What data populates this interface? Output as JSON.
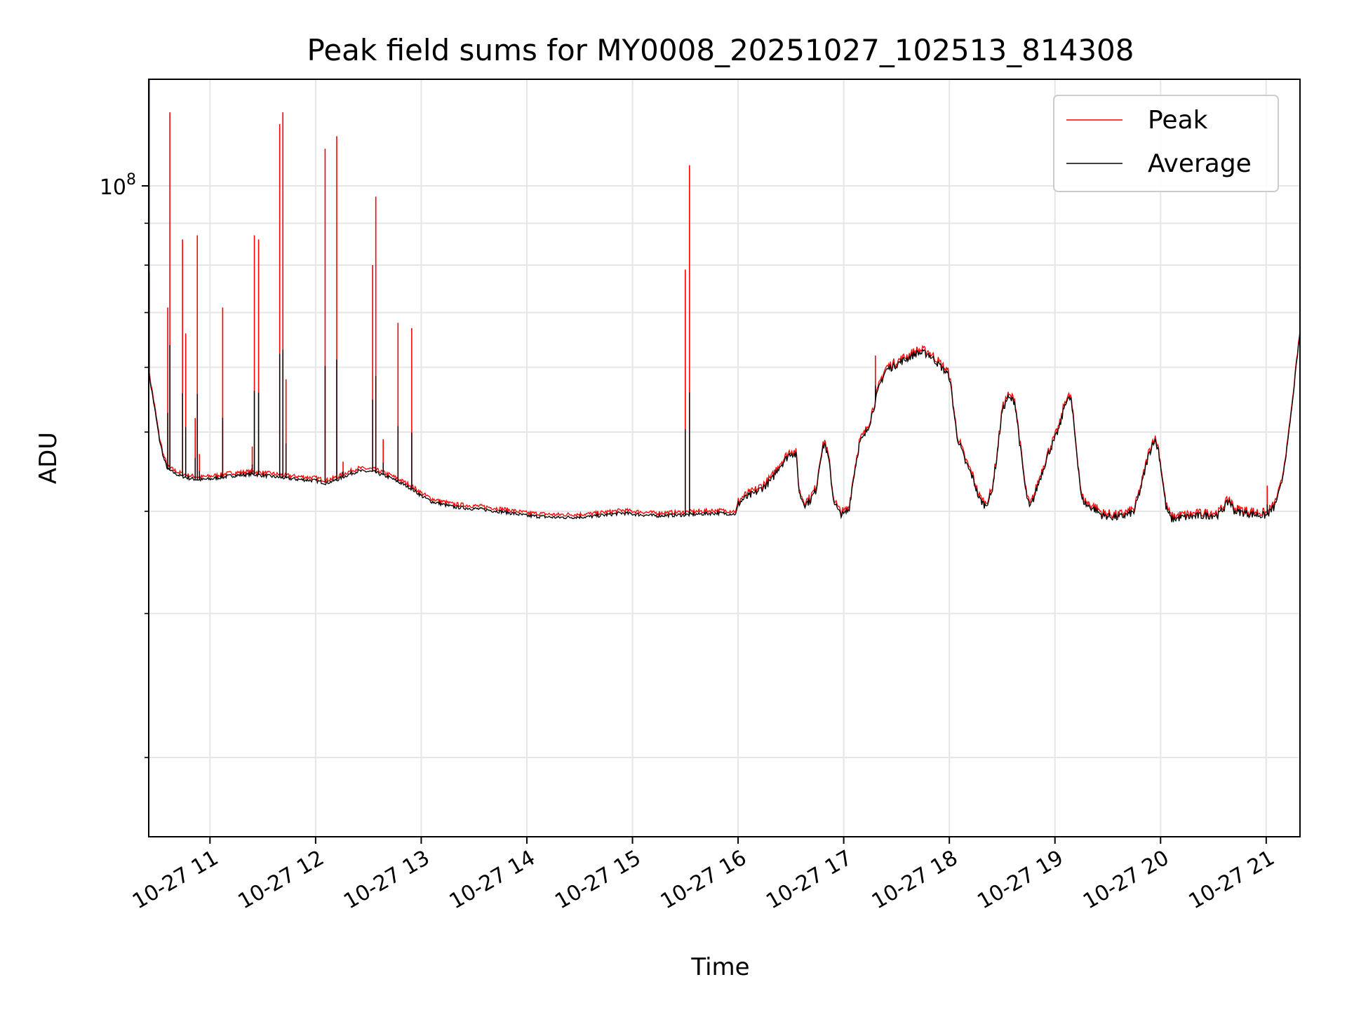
{
  "chart_data": {
    "type": "line",
    "title": "Peak field sums for MY0008_20251027_102513_814308",
    "xlabel": "Time",
    "ylabel": "ADU",
    "yscale": "log",
    "ylim": [
      16000000,
      135000000
    ],
    "xlim": [
      10.42,
      21.32
    ],
    "x_ticks": [
      11,
      12,
      13,
      14,
      15,
      16,
      17,
      18,
      19,
      20,
      21
    ],
    "x_tick_labels": [
      "10-27 11",
      "10-27 12",
      "10-27 13",
      "10-27 14",
      "10-27 15",
      "10-27 16",
      "10-27 17",
      "10-27 18",
      "10-27 19",
      "10-27 20",
      "10-27 21"
    ],
    "y_major_ticks": [
      100000000
    ],
    "y_major_tick_labels": {
      "base": "10",
      "exp": "8"
    },
    "y_minor_ticks": [
      20000000,
      30000000,
      40000000,
      50000000,
      60000000,
      70000000,
      80000000,
      90000000
    ],
    "grid": true,
    "legend_position": "top-right",
    "series": [
      {
        "name": "Peak",
        "color": "#ff0000",
        "baseline": "same as Average",
        "spikes": [
          [
            10.425,
            135000000
          ],
          [
            10.6,
            71000000
          ],
          [
            10.62,
            123000000
          ],
          [
            10.74,
            86000000
          ],
          [
            10.77,
            66000000
          ],
          [
            10.86,
            52000000
          ],
          [
            10.88,
            87000000
          ],
          [
            10.9,
            47000000
          ],
          [
            11.12,
            71000000
          ],
          [
            11.4,
            48000000
          ],
          [
            11.42,
            87000000
          ],
          [
            11.46,
            86000000
          ],
          [
            11.66,
            119000000
          ],
          [
            11.69,
            123000000
          ],
          [
            11.72,
            58000000
          ],
          [
            12.09,
            111000000
          ],
          [
            12.2,
            115000000
          ],
          [
            12.26,
            46000000
          ],
          [
            12.54,
            80000000
          ],
          [
            12.57,
            97000000
          ],
          [
            12.64,
            49000000
          ],
          [
            12.78,
            68000000
          ],
          [
            12.91,
            67000000
          ],
          [
            15.5,
            79000000
          ],
          [
            15.54,
            106000000
          ],
          [
            17.3,
            62000000
          ],
          [
            18.33,
            41000000
          ],
          [
            21.01,
            43000000
          ]
        ]
      },
      {
        "name": "Average",
        "color": "#000000",
        "points": [
          [
            10.42,
            59000000
          ],
          [
            10.44,
            57000000
          ],
          [
            10.48,
            53000000
          ],
          [
            10.52,
            49000000
          ],
          [
            10.56,
            46500000
          ],
          [
            10.6,
            45000000
          ],
          [
            10.7,
            44300000
          ],
          [
            10.8,
            43900000
          ],
          [
            10.9,
            43700000
          ],
          [
            11.0,
            43800000
          ],
          [
            11.2,
            44200000
          ],
          [
            11.4,
            44400000
          ],
          [
            11.6,
            44100000
          ],
          [
            11.8,
            43800000
          ],
          [
            12.0,
            43600000
          ],
          [
            12.1,
            43300000
          ],
          [
            12.2,
            43700000
          ],
          [
            12.3,
            44300000
          ],
          [
            12.4,
            44800000
          ],
          [
            12.55,
            44700000
          ],
          [
            12.7,
            44000000
          ],
          [
            12.9,
            42700000
          ],
          [
            13.0,
            41800000
          ],
          [
            13.1,
            41100000
          ],
          [
            13.3,
            40500000
          ],
          [
            13.6,
            40200000
          ],
          [
            13.8,
            39900000
          ],
          [
            14.0,
            39500000
          ],
          [
            14.3,
            39300000
          ],
          [
            14.6,
            39400000
          ],
          [
            14.9,
            39800000
          ],
          [
            15.2,
            39500000
          ],
          [
            15.5,
            39600000
          ],
          [
            15.8,
            39800000
          ],
          [
            15.98,
            39700000
          ],
          [
            16.0,
            40800000
          ],
          [
            16.05,
            41400000
          ],
          [
            16.15,
            42000000
          ],
          [
            16.25,
            42900000
          ],
          [
            16.32,
            43700000
          ],
          [
            16.38,
            45200000
          ],
          [
            16.45,
            46300000
          ],
          [
            16.5,
            47200000
          ],
          [
            16.55,
            46800000
          ],
          [
            16.58,
            42000000
          ],
          [
            16.63,
            40800000
          ],
          [
            16.68,
            41200000
          ],
          [
            16.74,
            42500000
          ],
          [
            16.78,
            46500000
          ],
          [
            16.82,
            48500000
          ],
          [
            16.86,
            46000000
          ],
          [
            16.9,
            41500000
          ],
          [
            16.95,
            39900000
          ],
          [
            17.0,
            39600000
          ],
          [
            17.05,
            40200000
          ],
          [
            17.1,
            44500000
          ],
          [
            17.15,
            48500000
          ],
          [
            17.2,
            49500000
          ],
          [
            17.25,
            51500000
          ],
          [
            17.3,
            54500000
          ],
          [
            17.35,
            57500000
          ],
          [
            17.4,
            59500000
          ],
          [
            17.5,
            60500000
          ],
          [
            17.6,
            61500000
          ],
          [
            17.7,
            62500000
          ],
          [
            17.8,
            62300000
          ],
          [
            17.9,
            60500000
          ],
          [
            18.0,
            58500000
          ],
          [
            18.07,
            49500000
          ],
          [
            18.15,
            46000000
          ],
          [
            18.22,
            44000000
          ],
          [
            18.28,
            41500000
          ],
          [
            18.34,
            40600000
          ],
          [
            18.4,
            42000000
          ],
          [
            18.45,
            46500000
          ],
          [
            18.5,
            53000000
          ],
          [
            18.55,
            55000000
          ],
          [
            18.62,
            54500000
          ],
          [
            18.67,
            48000000
          ],
          [
            18.72,
            42500000
          ],
          [
            18.76,
            40300000
          ],
          [
            18.8,
            41500000
          ],
          [
            18.85,
            43500000
          ],
          [
            18.9,
            45500000
          ],
          [
            18.95,
            47500000
          ],
          [
            19.0,
            49000000
          ],
          [
            19.05,
            51000000
          ],
          [
            19.1,
            54500000
          ],
          [
            19.15,
            55000000
          ],
          [
            19.2,
            48000000
          ],
          [
            19.25,
            41500000
          ],
          [
            19.3,
            40700000
          ],
          [
            19.38,
            40200000
          ],
          [
            19.45,
            39500000
          ],
          [
            19.6,
            39300000
          ],
          [
            19.75,
            39900000
          ],
          [
            19.82,
            43000000
          ],
          [
            19.88,
            46500000
          ],
          [
            19.94,
            49000000
          ],
          [
            19.98,
            47500000
          ],
          [
            20.05,
            40500000
          ],
          [
            20.1,
            39100000
          ],
          [
            20.2,
            39300000
          ],
          [
            20.4,
            39500000
          ],
          [
            20.55,
            39600000
          ],
          [
            20.65,
            41200000
          ],
          [
            20.7,
            40000000
          ],
          [
            20.85,
            39700000
          ],
          [
            21.0,
            39500000
          ],
          [
            21.08,
            40500000
          ],
          [
            21.15,
            43500000
          ],
          [
            21.2,
            48000000
          ],
          [
            21.25,
            54500000
          ],
          [
            21.32,
            66000000
          ]
        ]
      }
    ]
  }
}
